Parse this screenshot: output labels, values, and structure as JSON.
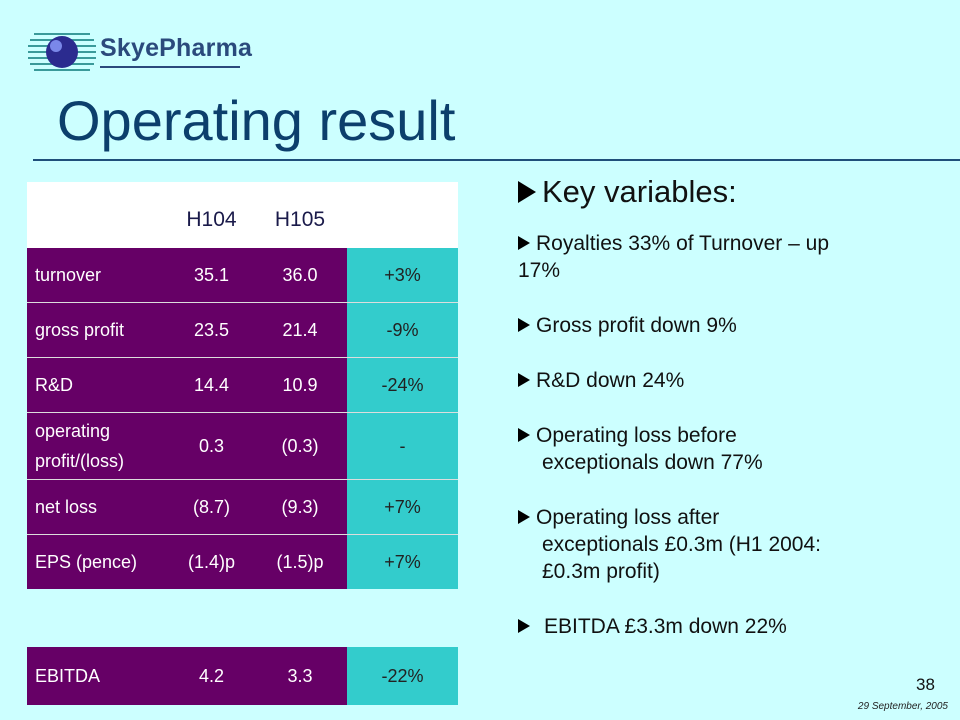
{
  "brand": {
    "name": "SkyePharma",
    "colors": {
      "navy": "#0c3f6c",
      "purple": "#660066",
      "teal": "#33cccc",
      "background": "#ccffff"
    }
  },
  "title": "Operating result",
  "table": {
    "columns": [
      "H104",
      "H105"
    ],
    "rows": [
      {
        "label": "turnover",
        "h104": "35.1",
        "h105": "36.0",
        "change": "+3%"
      },
      {
        "label": "gross profit",
        "h104": "23.5",
        "h105": "21.4",
        "change": "-9%"
      },
      {
        "label": "R&D",
        "h104": "14.4",
        "h105": "10.9",
        "change": "-24%"
      },
      {
        "label_line1": "operating",
        "label_line2": "profit/(loss)",
        "h104": "0.3",
        "h105": "(0.3)",
        "change": "-"
      },
      {
        "label": "net loss",
        "h104": "(8.7)",
        "h105": "(9.3)",
        "change": "+7%"
      },
      {
        "label": "EPS (pence)",
        "h104": "(1.4)p",
        "h105": "(1.5)p",
        "change": "+7%"
      }
    ],
    "ebitda": {
      "label": "EBITDA",
      "h104": "4.2",
      "h105": "3.3",
      "change": "-22%"
    }
  },
  "key_variables": {
    "heading": "Key variables:",
    "bullets": [
      {
        "line1": "Royalties 33% of Turnover – up",
        "line2": "17%"
      },
      {
        "line1": "Gross profit down 9%"
      },
      {
        "line1": "R&D down 24%"
      },
      {
        "line1": "Operating loss before",
        "line2": "exceptionals down 77%"
      },
      {
        "line1": "Operating loss after",
        "line2": "exceptionals £0.3m (H1 2004:",
        "line3": "£0.3m profit)"
      },
      {
        "line1": "EBITDA £3.3m down 22%"
      }
    ]
  },
  "footer": {
    "page_number": "38",
    "date": "29 September, 2005"
  },
  "icons": {
    "logo": "globe-logo-icon",
    "bullet": "arrow-bullet-icon"
  }
}
